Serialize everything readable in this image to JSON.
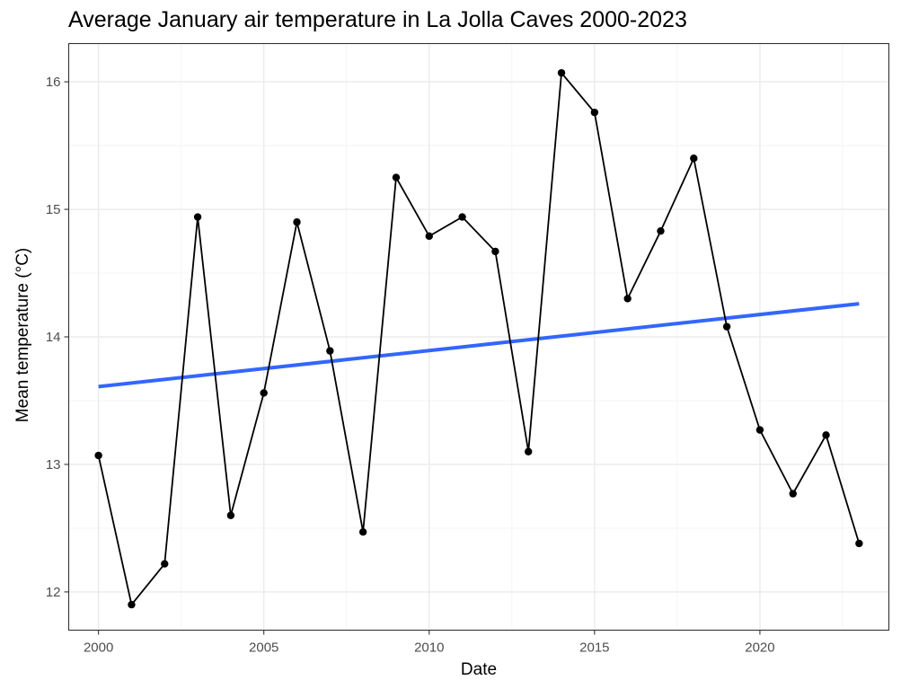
{
  "chart_data": {
    "type": "line",
    "title": "Average January air temperature in La Jolla Caves 2000-2023",
    "xlabel": "Date",
    "ylabel": "Mean temperature (°C)",
    "xlim": [
      1999.1,
      2023.9
    ],
    "ylim": [
      11.7,
      16.3
    ],
    "x_ticks": [
      2000,
      2005,
      2010,
      2015,
      2020
    ],
    "y_ticks": [
      12,
      13,
      14,
      15,
      16
    ],
    "grid": true,
    "legend": "none",
    "series": [
      {
        "x": [
          2000,
          2001,
          2002,
          2003,
          2004,
          2005,
          2006,
          2007,
          2008,
          2009,
          2010,
          2011,
          2012,
          2013,
          2014,
          2015,
          2016,
          2017,
          2018,
          2019,
          2020,
          2021,
          2022,
          2023
        ],
        "values": [
          13.07,
          11.9,
          12.22,
          14.94,
          12.6,
          13.56,
          14.9,
          13.89,
          12.47,
          15.25,
          14.79,
          14.94,
          14.67,
          13.1,
          16.07,
          15.76,
          14.3,
          14.83,
          15.4,
          14.08,
          13.27,
          12.77,
          13.23,
          12.38
        ],
        "color": "#000000",
        "markers": true
      }
    ],
    "trend": {
      "x": [
        2000,
        2023
      ],
      "values": [
        13.61,
        14.26
      ],
      "color": "#3366FF"
    }
  }
}
